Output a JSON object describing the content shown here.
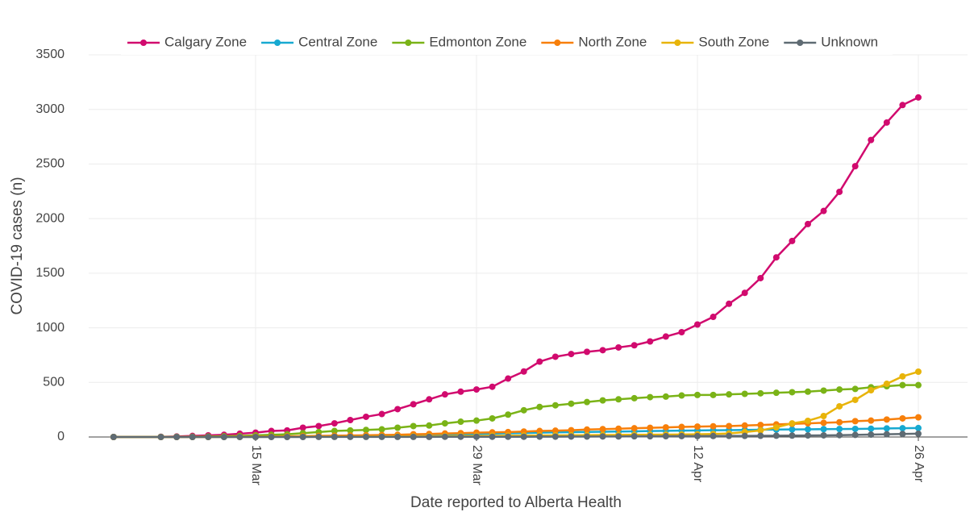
{
  "chart_data": {
    "type": "line",
    "x_label": "Date reported to Alberta Health",
    "y_label": "COVID-19 cases (n)",
    "x": [
      "6 Mar",
      "9 Mar",
      "10 Mar",
      "11 Mar",
      "12 Mar",
      "13 Mar",
      "14 Mar",
      "15 Mar",
      "16 Mar",
      "17 Mar",
      "18 Mar",
      "19 Mar",
      "20 Mar",
      "21 Mar",
      "22 Mar",
      "23 Mar",
      "24 Mar",
      "25 Mar",
      "26 Mar",
      "27 Mar",
      "28 Mar",
      "29 Mar",
      "30 Mar",
      "31 Mar",
      "1 Apr",
      "2 Apr",
      "3 Apr",
      "4 Apr",
      "5 Apr",
      "6 Apr",
      "7 Apr",
      "8 Apr",
      "9 Apr",
      "10 Apr",
      "11 Apr",
      "12 Apr",
      "13 Apr",
      "14 Apr",
      "15 Apr",
      "16 Apr",
      "17 Apr",
      "18 Apr",
      "19 Apr",
      "20 Apr",
      "21 Apr",
      "22 Apr",
      "23 Apr",
      "24 Apr",
      "25 Apr",
      "26 Apr"
    ],
    "xticks": [
      "15 Mar",
      "29 Mar",
      "12 Apr",
      "26 Apr"
    ],
    "ylim": [
      0,
      3500
    ],
    "yticks": [
      0,
      500,
      1000,
      1500,
      2000,
      2500,
      3000,
      3500
    ],
    "grid": true,
    "legend": "top",
    "series": [
      {
        "name": "Calgary Zone",
        "color": "#d10a6e",
        "values": [
          0,
          2,
          5,
          10,
          15,
          20,
          30,
          40,
          55,
          60,
          85,
          100,
          125,
          155,
          185,
          210,
          255,
          300,
          345,
          390,
          415,
          435,
          460,
          535,
          600,
          690,
          735,
          760,
          780,
          795,
          820,
          840,
          875,
          920,
          960,
          1030,
          1100,
          1220,
          1320,
          1455,
          1645,
          1795,
          1950,
          2070,
          2245,
          2480,
          2720,
          2880,
          3040,
          3110
        ]
      },
      {
        "name": "Central Zone",
        "color": "#17a9d1",
        "values": [
          0,
          0,
          0,
          0,
          1,
          1,
          2,
          2,
          3,
          4,
          5,
          6,
          8,
          10,
          12,
          14,
          16,
          18,
          20,
          22,
          25,
          28,
          30,
          34,
          36,
          40,
          42,
          44,
          46,
          48,
          50,
          52,
          54,
          56,
          58,
          60,
          62,
          63,
          65,
          66,
          68,
          69,
          70,
          72,
          73,
          74,
          76,
          78,
          80,
          82
        ]
      },
      {
        "name": "Edmonton Zone",
        "color": "#7ab317",
        "values": [
          0,
          1,
          2,
          3,
          5,
          7,
          10,
          15,
          20,
          25,
          35,
          45,
          55,
          60,
          65,
          70,
          85,
          100,
          105,
          125,
          140,
          150,
          170,
          205,
          245,
          275,
          290,
          305,
          320,
          335,
          345,
          355,
          365,
          370,
          380,
          385,
          385,
          390,
          395,
          400,
          405,
          410,
          415,
          425,
          435,
          440,
          455,
          465,
          475,
          475
        ]
      },
      {
        "name": "North Zone",
        "color": "#f77f0a",
        "values": [
          0,
          0,
          0,
          1,
          1,
          2,
          3,
          4,
          5,
          6,
          8,
          10,
          12,
          14,
          16,
          18,
          20,
          25,
          28,
          32,
          35,
          40,
          42,
          45,
          50,
          55,
          58,
          62,
          68,
          72,
          76,
          80,
          84,
          88,
          92,
          95,
          98,
          100,
          105,
          110,
          115,
          120,
          125,
          130,
          135,
          145,
          150,
          160,
          170,
          180
        ]
      },
      {
        "name": "South Zone",
        "color": "#e8b40a",
        "values": [
          0,
          0,
          0,
          0,
          0,
          1,
          1,
          1,
          2,
          2,
          3,
          3,
          4,
          4,
          5,
          5,
          6,
          6,
          7,
          8,
          9,
          10,
          11,
          12,
          13,
          14,
          15,
          16,
          17,
          18,
          19,
          20,
          21,
          22,
          23,
          25,
          28,
          32,
          45,
          60,
          88,
          125,
          148,
          192,
          281,
          340,
          428,
          487,
          555,
          598
        ]
      },
      {
        "name": "Unknown",
        "color": "#5f6b73",
        "values": [
          0,
          0,
          0,
          0,
          0,
          0,
          0,
          0,
          0,
          0,
          0,
          1,
          1,
          1,
          1,
          1,
          1,
          1,
          1,
          2,
          2,
          2,
          2,
          2,
          2,
          3,
          3,
          4,
          4,
          5,
          5,
          6,
          6,
          7,
          8,
          8,
          9,
          10,
          10,
          11,
          12,
          13,
          14,
          15,
          17,
          19,
          22,
          25,
          28,
          30
        ]
      }
    ]
  }
}
